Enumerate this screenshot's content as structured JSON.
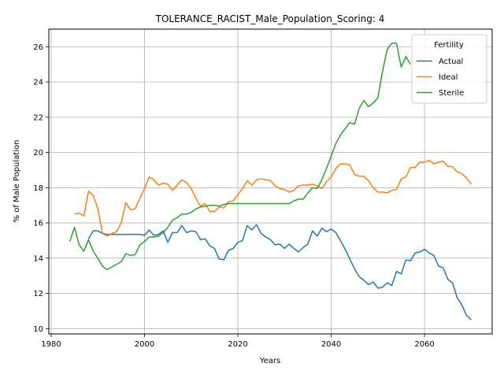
{
  "chart_data": {
    "type": "line",
    "title": "TOLERANCE_RACIST_Male_Population_Scoring: 4",
    "xlabel": "Years",
    "ylabel": "% of Male Population",
    "xlim": [
      1979.5,
      2074.5
    ],
    "ylim": [
      9.7,
      27.0
    ],
    "xticks": [
      1980,
      2000,
      2020,
      2040,
      2060
    ],
    "yticks": [
      10,
      12,
      14,
      16,
      18,
      20,
      22,
      24,
      26
    ],
    "grid": true,
    "legend": {
      "title": "Fertility",
      "placement": "upper-right"
    },
    "series": [
      {
        "name": "Actual",
        "color": "#1f77b4",
        "x": [
          1988,
          1989,
          1990,
          1991,
          1992,
          1993,
          1994,
          1995,
          1996,
          1997,
          1998,
          1999,
          2000,
          2001,
          2002,
          2003,
          2004,
          2005,
          2006,
          2007,
          2008,
          2009,
          2010,
          2011,
          2012,
          2013,
          2014,
          2015,
          2016,
          2017,
          2018,
          2019,
          2020,
          2021,
          2022,
          2023,
          2024,
          2025,
          2026,
          2027,
          2028,
          2029,
          2030,
          2031,
          2032,
          2033,
          2034,
          2035,
          2036,
          2037,
          2038,
          2039,
          2040,
          2041,
          2042,
          2043,
          2044,
          2045,
          2046,
          2047,
          2048,
          2049,
          2050,
          2051,
          2052,
          2053,
          2054,
          2055,
          2056,
          2057,
          2058,
          2059,
          2060,
          2061,
          2062,
          2063,
          2064,
          2065,
          2066,
          2067,
          2068,
          2069,
          2070
        ],
        "values": [
          15.1,
          15.55,
          15.55,
          15.4,
          15.35,
          15.35,
          15.35,
          15.35,
          15.35,
          15.35,
          15.35,
          15.35,
          15.3,
          15.6,
          15.3,
          15.35,
          15.55,
          14.9,
          15.45,
          15.45,
          15.85,
          15.45,
          15.55,
          15.5,
          15.05,
          15.1,
          14.7,
          14.55,
          13.95,
          13.9,
          14.45,
          14.55,
          14.9,
          15.0,
          15.85,
          15.6,
          15.9,
          15.4,
          15.2,
          15.05,
          14.75,
          14.8,
          14.55,
          14.8,
          14.55,
          14.35,
          14.6,
          14.8,
          15.55,
          15.25,
          15.7,
          15.5,
          15.65,
          15.45,
          15.0,
          14.5,
          13.95,
          13.4,
          12.95,
          12.75,
          12.5,
          12.65,
          12.3,
          12.35,
          12.6,
          12.45,
          13.25,
          13.1,
          13.9,
          13.85,
          14.3,
          14.35,
          14.5,
          14.3,
          14.15,
          13.55,
          13.45,
          12.8,
          12.6,
          11.75,
          11.35,
          10.75,
          10.5
        ]
      },
      {
        "name": "Ideal",
        "color": "#ff7f0e",
        "x": [
          1985,
          1986,
          1987,
          1988,
          1989,
          1990,
          1991,
          1992,
          1993,
          1994,
          1995,
          1996,
          1997,
          1998,
          1999,
          2000,
          2001,
          2002,
          2003,
          2004,
          2005,
          2006,
          2007,
          2008,
          2009,
          2010,
          2011,
          2012,
          2013,
          2014,
          2015,
          2016,
          2017,
          2018,
          2019,
          2020,
          2021,
          2022,
          2023,
          2024,
          2025,
          2026,
          2027,
          2028,
          2029,
          2030,
          2031,
          2032,
          2033,
          2034,
          2035,
          2036,
          2037,
          2038,
          2039,
          2040,
          2041,
          2042,
          2043,
          2044,
          2045,
          2046,
          2047,
          2048,
          2049,
          2050,
          2051,
          2052,
          2053,
          2054,
          2055,
          2056,
          2057,
          2058,
          2059,
          2060,
          2061,
          2062,
          2063,
          2064,
          2065,
          2066,
          2067,
          2068,
          2069,
          2070
        ],
        "values": [
          16.5,
          16.55,
          16.4,
          17.8,
          17.55,
          16.8,
          15.4,
          15.25,
          15.4,
          15.5,
          16.0,
          17.15,
          16.75,
          16.8,
          17.4,
          17.95,
          18.6,
          18.45,
          18.15,
          18.25,
          18.2,
          17.85,
          18.15,
          18.45,
          18.3,
          17.95,
          17.4,
          16.95,
          17.1,
          16.65,
          16.65,
          16.9,
          16.85,
          17.2,
          17.25,
          17.6,
          17.95,
          18.4,
          18.15,
          18.45,
          18.5,
          18.45,
          18.4,
          18.1,
          17.95,
          17.9,
          17.75,
          17.85,
          18.1,
          18.15,
          18.15,
          18.2,
          18.1,
          17.95,
          18.35,
          18.6,
          19.1,
          19.35,
          19.35,
          19.3,
          18.75,
          18.65,
          18.65,
          18.4,
          18.0,
          17.75,
          17.75,
          17.7,
          17.85,
          17.9,
          18.5,
          18.6,
          19.15,
          19.15,
          19.45,
          19.45,
          19.55,
          19.35,
          19.45,
          19.5,
          19.2,
          19.2,
          18.9,
          18.8,
          18.55,
          18.2
        ]
      },
      {
        "name": "Sterile",
        "color": "#2ca02c",
        "x": [
          1984,
          1985,
          1986,
          1987,
          1988,
          1989,
          1990,
          1991,
          1992,
          1993,
          1994,
          1995,
          1996,
          1997,
          1998,
          1999,
          2000,
          2001,
          2002,
          2003,
          2004,
          2005,
          2006,
          2007,
          2008,
          2009,
          2010,
          2011,
          2012,
          2013,
          2014,
          2015,
          2016,
          2017,
          2018,
          2019,
          2020,
          2021,
          2022,
          2023,
          2024,
          2025,
          2026,
          2027,
          2028,
          2029,
          2030,
          2031,
          2032,
          2033,
          2034,
          2035,
          2036,
          2037,
          2038,
          2039,
          2040,
          2041,
          2042,
          2043,
          2044,
          2045,
          2046,
          2047,
          2048,
          2049,
          2050,
          2051,
          2052,
          2053,
          2054,
          2055,
          2056,
          2057
        ],
        "values": [
          14.95,
          15.75,
          14.75,
          14.4,
          15.05,
          14.4,
          14.0,
          13.55,
          13.35,
          13.5,
          13.65,
          13.8,
          14.25,
          14.15,
          14.2,
          14.75,
          14.95,
          15.2,
          15.2,
          15.25,
          15.45,
          15.75,
          16.15,
          16.3,
          16.5,
          16.5,
          16.6,
          16.8,
          16.9,
          16.95,
          17.0,
          17.0,
          16.95,
          17.05,
          17.1,
          17.1,
          17.1,
          17.1,
          17.1,
          17.1,
          17.1,
          17.1,
          17.1,
          17.1,
          17.1,
          17.1,
          17.1,
          17.1,
          17.25,
          17.35,
          17.35,
          17.7,
          18.0,
          17.95,
          18.45,
          19.1,
          19.8,
          20.5,
          21.0,
          21.35,
          21.7,
          21.6,
          22.5,
          22.95,
          22.6,
          22.8,
          23.1,
          24.6,
          25.85,
          26.2,
          26.2,
          24.85,
          25.45,
          25.0
        ]
      }
    ]
  }
}
